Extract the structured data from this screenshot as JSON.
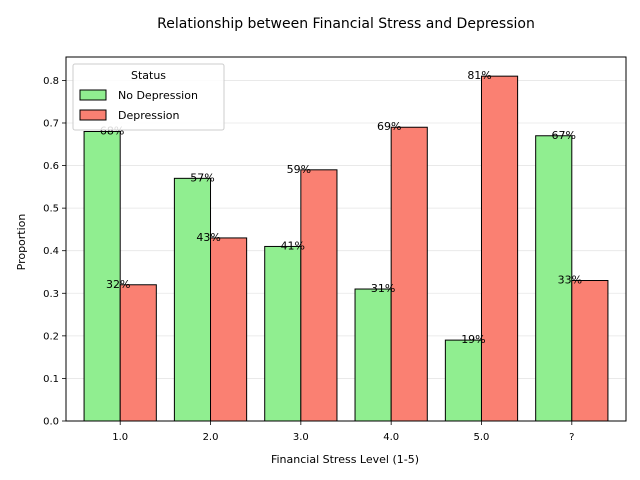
{
  "chart_data": {
    "type": "bar",
    "title": "Relationship between Financial Stress and Depression",
    "xlabel": "Financial Stress Level (1-5)",
    "ylabel": "Proportion",
    "categories": [
      "1.0",
      "2.0",
      "3.0",
      "4.0",
      "5.0",
      "?"
    ],
    "series": [
      {
        "name": "No Depression",
        "values": [
          0.68,
          0.57,
          0.41,
          0.31,
          0.19,
          0.67
        ],
        "labels": [
          "68%",
          "57%",
          "41%",
          "31%",
          "19%",
          "67%"
        ],
        "color": "#90ee90"
      },
      {
        "name": "Depression",
        "values": [
          0.32,
          0.43,
          0.59,
          0.69,
          0.81,
          0.33
        ],
        "labels": [
          "32%",
          "43%",
          "59%",
          "69%",
          "81%",
          "33%"
        ],
        "color": "#fa8072"
      }
    ],
    "ylim": [
      0,
      0.855
    ],
    "yticks": [
      0.0,
      0.1,
      0.2,
      0.3,
      0.4,
      0.5,
      0.6,
      0.7,
      0.8
    ],
    "ytick_labels": [
      "0.0",
      "0.1",
      "0.2",
      "0.3",
      "0.4",
      "0.5",
      "0.6",
      "0.7",
      "0.8"
    ],
    "grid": "y",
    "legend": {
      "title": "Status",
      "placement": "top-left"
    }
  }
}
